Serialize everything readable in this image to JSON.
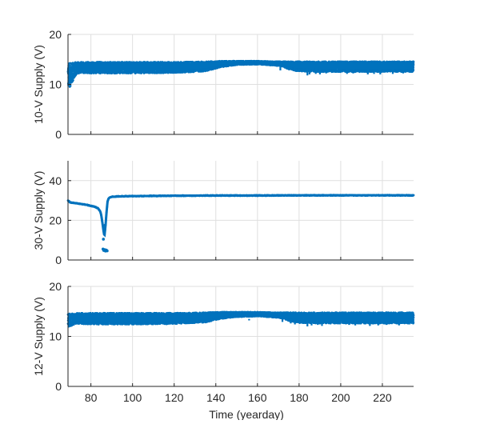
{
  "chart_data": [
    {
      "type": "scatter",
      "title": "",
      "xlabel": "",
      "ylabel": "10-V Supply (V)",
      "xlim": [
        69,
        235
      ],
      "ylim": [
        0,
        20
      ],
      "xticks": [
        80,
        100,
        120,
        140,
        160,
        180,
        200,
        220
      ],
      "xtick_labels": [],
      "yticks": [
        0,
        10,
        20
      ],
      "ytick_labels": [
        "0",
        "10",
        "20"
      ],
      "grid": true,
      "color": "#0072BD",
      "band": {
        "x": [
          69,
          70,
          71,
          72,
          73,
          75,
          80,
          90,
          100,
          120,
          135,
          142,
          150,
          160,
          168,
          172,
          175,
          180,
          190,
          200,
          210,
          220,
          230,
          235
        ],
        "low": [
          9.2,
          9.5,
          10.2,
          11.3,
          12.0,
          12.3,
          12.2,
          12.2,
          12.2,
          12.3,
          12.6,
          13.4,
          13.9,
          14.0,
          13.8,
          13.6,
          13.0,
          12.6,
          12.5,
          12.5,
          12.5,
          12.5,
          12.5,
          12.5
        ],
        "high": [
          14.3,
          14.3,
          14.4,
          14.4,
          14.5,
          14.5,
          14.5,
          14.5,
          14.5,
          14.5,
          14.6,
          14.7,
          14.7,
          14.7,
          14.6,
          14.6,
          14.6,
          14.6,
          14.6,
          14.6,
          14.6,
          14.6,
          14.6,
          14.6
        ]
      },
      "dips": [
        {
          "x": 171,
          "y": 12.8
        },
        {
          "x": 176,
          "y": 12.9
        },
        {
          "x": 178,
          "y": 13.0
        },
        {
          "x": 184,
          "y": 11.8
        },
        {
          "x": 185,
          "y": 12.0
        },
        {
          "x": 188,
          "y": 12.1
        },
        {
          "x": 190,
          "y": 12.0
        },
        {
          "x": 193,
          "y": 12.2
        },
        {
          "x": 203,
          "y": 12.1
        },
        {
          "x": 206,
          "y": 12.2
        },
        {
          "x": 213,
          "y": 12.0
        },
        {
          "x": 216,
          "y": 12.1
        },
        {
          "x": 219,
          "y": 12.0
        },
        {
          "x": 225,
          "y": 12.1
        },
        {
          "x": 230,
          "y": 12.2
        }
      ]
    },
    {
      "type": "scatter",
      "title": "",
      "xlabel": "",
      "ylabel": "30-V Supply (V)",
      "xlim": [
        69,
        235
      ],
      "ylim": [
        0,
        50
      ],
      "xticks": [
        80,
        100,
        120,
        140,
        160,
        180,
        200,
        220
      ],
      "xtick_labels": [],
      "yticks": [
        0,
        20,
        40
      ],
      "ytick_labels": [
        "0",
        "20",
        "40"
      ],
      "grid": true,
      "color": "#0072BD",
      "series": {
        "x": [
          69,
          70,
          72,
          75,
          78,
          80,
          82,
          83.5,
          84.5,
          85,
          85.5,
          86,
          86.5,
          87,
          87.5,
          88,
          88.5,
          89,
          90,
          92,
          95,
          100,
          110,
          120,
          140,
          160,
          180,
          200,
          220,
          235
        ],
        "y": [
          30.0,
          29.0,
          28.7,
          28.3,
          27.8,
          27.3,
          26.8,
          26.0,
          24.5,
          22.5,
          19.0,
          15.0,
          12.0,
          17.0,
          24.0,
          29.5,
          31.0,
          31.5,
          31.8,
          32.0,
          32.1,
          32.2,
          32.3,
          32.4,
          32.5,
          32.5,
          32.6,
          32.6,
          32.6,
          32.6
        ]
      },
      "outliers": [
        {
          "x": 85.8,
          "y": 5.5
        },
        {
          "x": 86.2,
          "y": 4.8
        },
        {
          "x": 86.6,
          "y": 5.2
        },
        {
          "x": 87.0,
          "y": 4.5
        },
        {
          "x": 87.4,
          "y": 5.0
        },
        {
          "x": 87.8,
          "y": 4.6
        },
        {
          "x": 86.0,
          "y": 10.5
        },
        {
          "x": 86.4,
          "y": 13.5
        },
        {
          "x": 86.8,
          "y": 17.5
        }
      ]
    },
    {
      "type": "scatter",
      "title": "",
      "xlabel": "Time (yearday)",
      "ylabel": "12-V Supply (V)",
      "xlim": [
        69,
        235
      ],
      "ylim": [
        0,
        20
      ],
      "xticks": [
        80,
        100,
        120,
        140,
        160,
        180,
        200,
        220
      ],
      "xtick_labels": [
        "80",
        "100",
        "120",
        "140",
        "160",
        "180",
        "200",
        "220"
      ],
      "yticks": [
        0,
        10,
        20
      ],
      "ytick_labels": [
        "0",
        "10",
        "20"
      ],
      "grid": true,
      "color": "#0072BD",
      "band": {
        "x": [
          69,
          70,
          71,
          72,
          73,
          75,
          80,
          90,
          100,
          120,
          135,
          142,
          150,
          160,
          168,
          172,
          175,
          180,
          190,
          200,
          210,
          220,
          230,
          235
        ],
        "low": [
          11.8,
          12.0,
          12.2,
          12.4,
          12.5,
          12.5,
          12.4,
          12.4,
          12.4,
          12.5,
          12.8,
          13.5,
          13.9,
          14.0,
          13.8,
          13.6,
          13.1,
          12.7,
          12.6,
          12.6,
          12.6,
          12.6,
          12.6,
          12.6
        ],
        "high": [
          14.6,
          14.6,
          14.6,
          14.6,
          14.7,
          14.7,
          14.7,
          14.7,
          14.7,
          14.7,
          14.8,
          14.9,
          14.9,
          14.9,
          14.8,
          14.8,
          14.8,
          14.8,
          14.8,
          14.8,
          14.8,
          14.8,
          14.8,
          14.8
        ]
      },
      "dips": [
        {
          "x": 156,
          "y": 13.2
        },
        {
          "x": 172,
          "y": 12.9
        },
        {
          "x": 176,
          "y": 12.6
        },
        {
          "x": 178,
          "y": 12.4
        },
        {
          "x": 184,
          "y": 12.0
        },
        {
          "x": 186,
          "y": 12.2
        },
        {
          "x": 189,
          "y": 12.3
        },
        {
          "x": 191,
          "y": 12.1
        },
        {
          "x": 204,
          "y": 12.3
        },
        {
          "x": 207,
          "y": 12.2
        },
        {
          "x": 214,
          "y": 12.1
        },
        {
          "x": 218,
          "y": 12.2
        },
        {
          "x": 222,
          "y": 12.3
        },
        {
          "x": 228,
          "y": 12.2
        },
        {
          "x": 233,
          "y": 12.4
        }
      ]
    }
  ]
}
